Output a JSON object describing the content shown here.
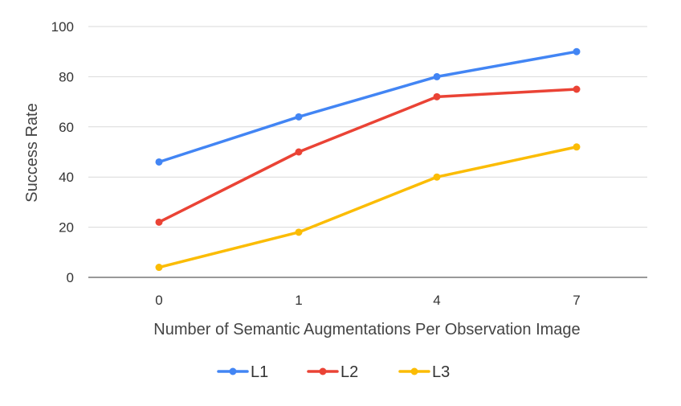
{
  "chart_data": {
    "type": "line",
    "title": "",
    "xlabel": "Number of Semantic Augmentations Per Observation Image",
    "ylabel": "Success Rate",
    "categories": [
      "0",
      "1",
      "4",
      "7"
    ],
    "ylim": [
      0,
      100
    ],
    "yticks": [
      0,
      20,
      40,
      60,
      80,
      100
    ],
    "grid": true,
    "legend_position": "bottom",
    "series": [
      {
        "name": "L1",
        "color": "#4285F4",
        "values": [
          46,
          64,
          80,
          90
        ]
      },
      {
        "name": "L2",
        "color": "#EA4335",
        "values": [
          22,
          50,
          72,
          75
        ]
      },
      {
        "name": "L3",
        "color": "#FBBC04",
        "values": [
          4,
          18,
          40,
          52
        ]
      }
    ]
  }
}
